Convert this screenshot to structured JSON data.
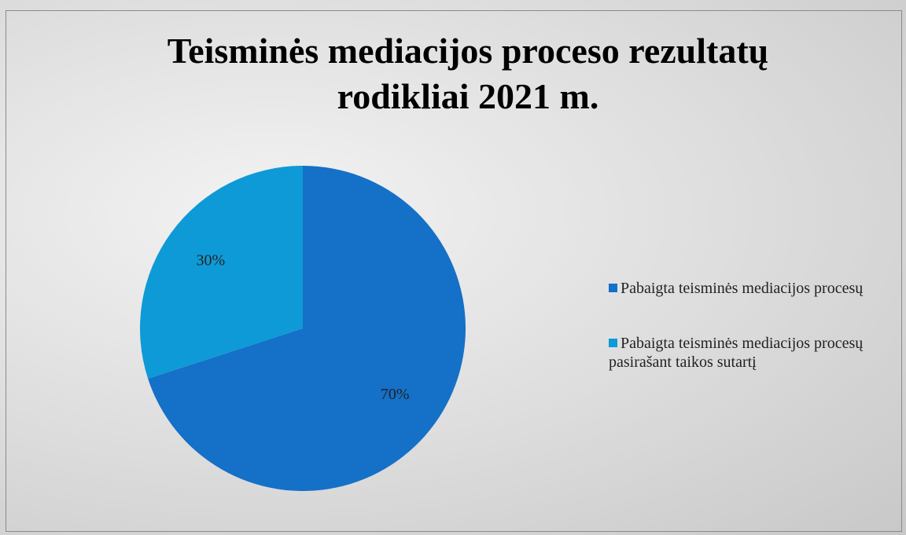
{
  "chart_data": {
    "type": "pie",
    "title": "Teisminės mediacijos proceso rezultatų rodikliai 2021 m.",
    "categories": [
      "Pabaigta teisminės mediacijos procesų",
      "Pabaigta teisminės mediacijos procesų pasirašant taikos sutartį"
    ],
    "values": [
      70,
      30
    ],
    "value_labels": [
      "70%",
      "30%"
    ],
    "colors": [
      "#1570c8",
      "#0e9ad6"
    ],
    "legend": "right"
  }
}
